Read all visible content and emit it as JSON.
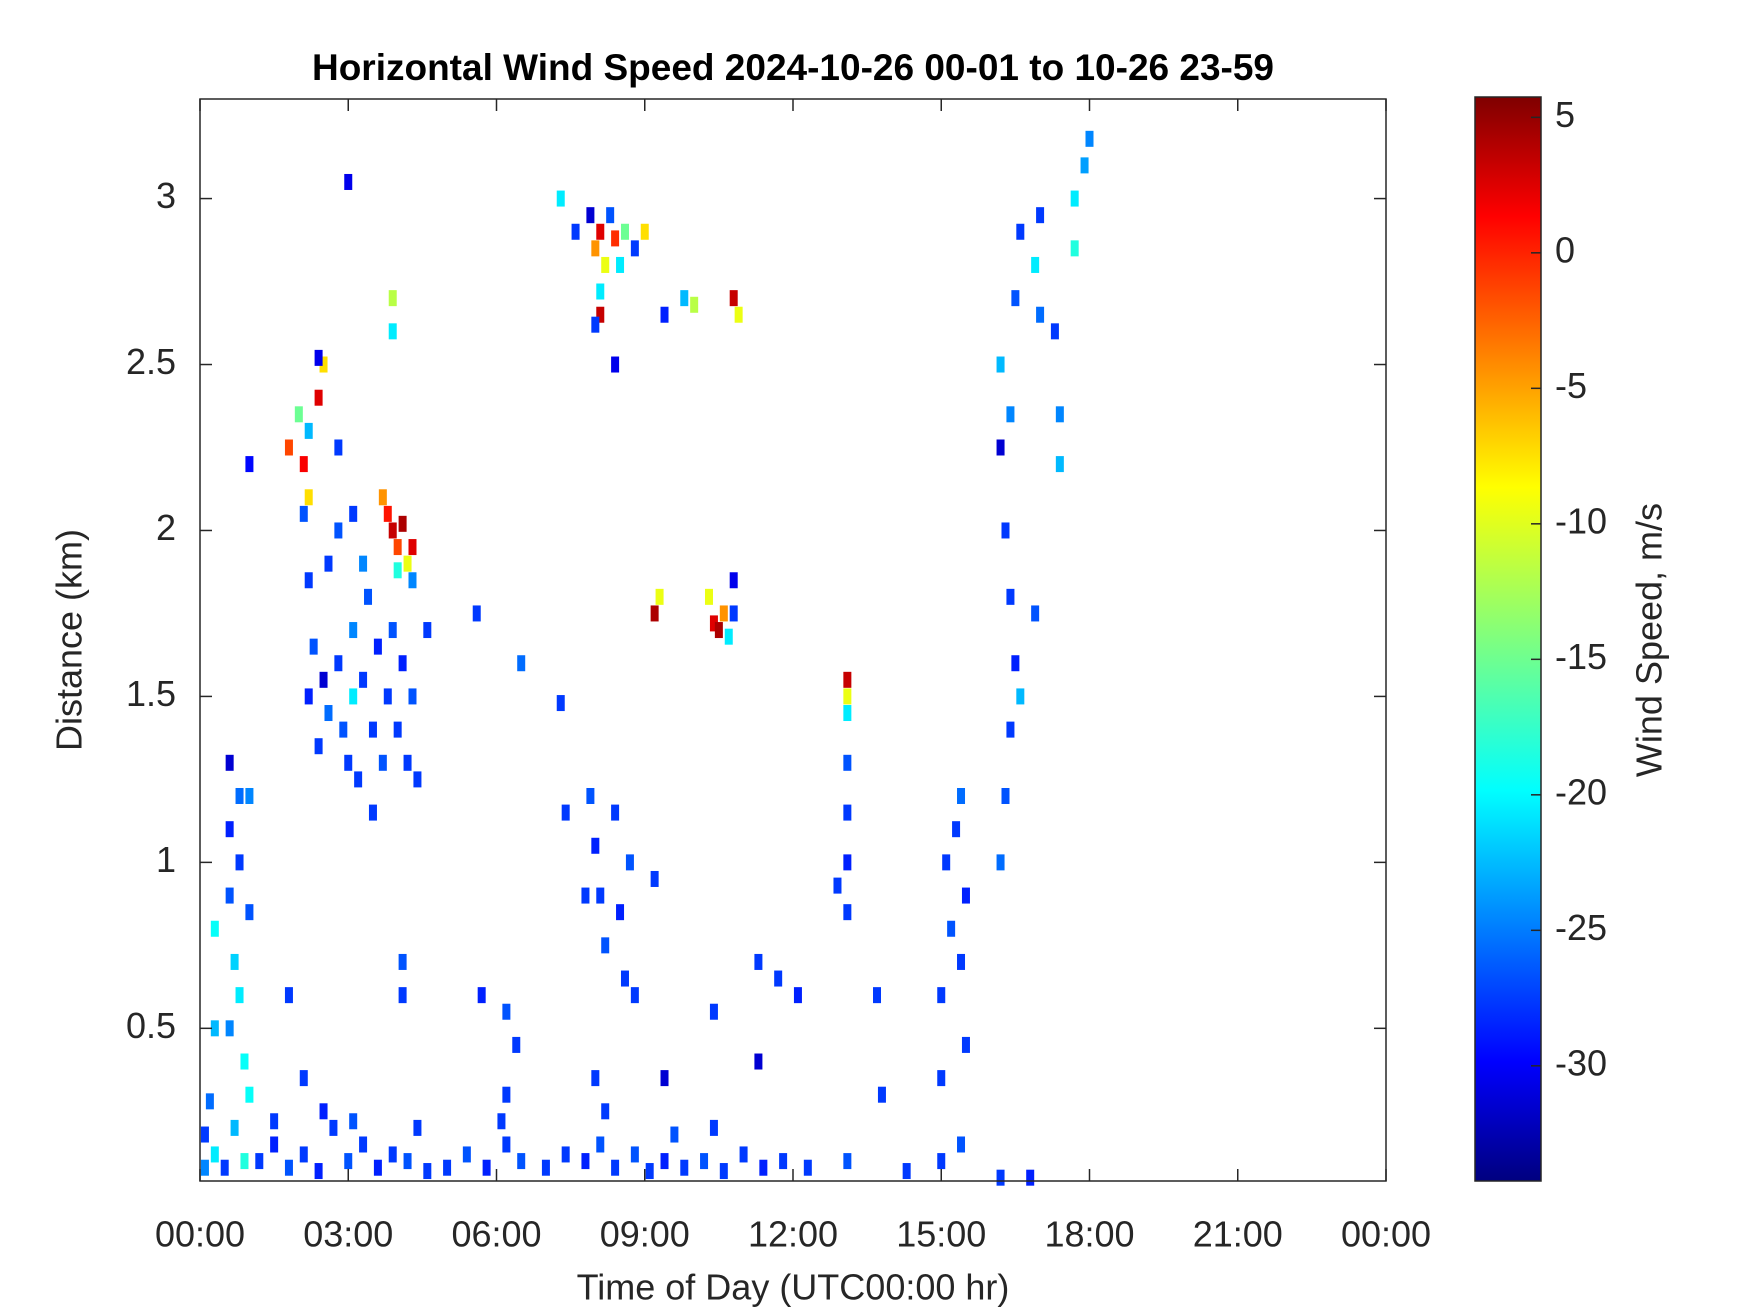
{
  "chart_data": {
    "type": "heatmap",
    "title": "Horizontal Wind Speed 2024-10-26 00-01 to 10-26 23-59",
    "x_label": "Time of Day (UTC00:00 hr)",
    "y_label": "Distance (km)",
    "colorbar_label": "Wind Speed, m/s",
    "colormap": "jet",
    "xlim": [
      0,
      24
    ],
    "xticks": [
      {
        "value": 0,
        "label": "00:00"
      },
      {
        "value": 3,
        "label": "03:00"
      },
      {
        "value": 6,
        "label": "06:00"
      },
      {
        "value": 9,
        "label": "09:00"
      },
      {
        "value": 12,
        "label": "12:00"
      },
      {
        "value": 15,
        "label": "15:00"
      },
      {
        "value": 18,
        "label": "18:00"
      },
      {
        "value": 21,
        "label": "21:00"
      },
      {
        "value": 24,
        "label": "00:00"
      }
    ],
    "ylim": [
      0.04,
      3.3
    ],
    "yticks": [
      0.5,
      1,
      1.5,
      2,
      2.5,
      3
    ],
    "clim": [
      -34.25,
      5.75
    ],
    "cticks": [
      5,
      0,
      -5,
      -10,
      -15,
      -20,
      -25,
      -30
    ],
    "points": [
      {
        "x": 0.1,
        "y": 0.08,
        "value": -24
      },
      {
        "x": 0.1,
        "y": 0.18,
        "value": -27
      },
      {
        "x": 0.3,
        "y": 0.12,
        "value": -20
      },
      {
        "x": 0.5,
        "y": 0.08,
        "value": -27
      },
      {
        "x": 0.7,
        "y": 0.2,
        "value": -22
      },
      {
        "x": 0.9,
        "y": 0.1,
        "value": -18
      },
      {
        "x": 1.2,
        "y": 0.1,
        "value": -27
      },
      {
        "x": 1.5,
        "y": 0.15,
        "value": -28
      },
      {
        "x": 1.8,
        "y": 0.08,
        "value": -26
      },
      {
        "x": 2.1,
        "y": 0.12,
        "value": -27
      },
      {
        "x": 2.4,
        "y": 0.07,
        "value": -28
      },
      {
        "x": 2.7,
        "y": 0.2,
        "value": -27
      },
      {
        "x": 3.0,
        "y": 0.1,
        "value": -26
      },
      {
        "x": 3.3,
        "y": 0.15,
        "value": -27
      },
      {
        "x": 3.6,
        "y": 0.08,
        "value": -28
      },
      {
        "x": 3.9,
        "y": 0.12,
        "value": -27
      },
      {
        "x": 4.2,
        "y": 0.1,
        "value": -26
      },
      {
        "x": 4.6,
        "y": 0.07,
        "value": -27
      },
      {
        "x": 5.0,
        "y": 0.08,
        "value": -27
      },
      {
        "x": 5.4,
        "y": 0.12,
        "value": -26
      },
      {
        "x": 5.8,
        "y": 0.08,
        "value": -28
      },
      {
        "x": 6.2,
        "y": 0.15,
        "value": -27
      },
      {
        "x": 6.5,
        "y": 0.1,
        "value": -26
      },
      {
        "x": 7.0,
        "y": 0.08,
        "value": -27
      },
      {
        "x": 7.4,
        "y": 0.12,
        "value": -27
      },
      {
        "x": 7.8,
        "y": 0.1,
        "value": -28
      },
      {
        "x": 8.1,
        "y": 0.15,
        "value": -26
      },
      {
        "x": 8.4,
        "y": 0.08,
        "value": -27
      },
      {
        "x": 8.8,
        "y": 0.12,
        "value": -26
      },
      {
        "x": 9.1,
        "y": 0.07,
        "value": -27
      },
      {
        "x": 9.4,
        "y": 0.1,
        "value": -28
      },
      {
        "x": 9.8,
        "y": 0.08,
        "value": -27
      },
      {
        "x": 10.2,
        "y": 0.1,
        "value": -26
      },
      {
        "x": 10.6,
        "y": 0.07,
        "value": -27
      },
      {
        "x": 11.0,
        "y": 0.12,
        "value": -27
      },
      {
        "x": 11.4,
        "y": 0.08,
        "value": -28
      },
      {
        "x": 11.8,
        "y": 0.1,
        "value": -27
      },
      {
        "x": 12.3,
        "y": 0.08,
        "value": -27
      },
      {
        "x": 13.1,
        "y": 0.1,
        "value": -26
      },
      {
        "x": 14.3,
        "y": 0.07,
        "value": -27
      },
      {
        "x": 15.0,
        "y": 0.1,
        "value": -27
      },
      {
        "x": 15.4,
        "y": 0.15,
        "value": -26
      },
      {
        "x": 16.2,
        "y": 0.05,
        "value": -27
      },
      {
        "x": 16.8,
        "y": 0.05,
        "value": -28
      },
      {
        "x": 0.2,
        "y": 0.28,
        "value": -25
      },
      {
        "x": 1.5,
        "y": 0.22,
        "value": -27
      },
      {
        "x": 2.5,
        "y": 0.25,
        "value": -28
      },
      {
        "x": 3.1,
        "y": 0.22,
        "value": -26
      },
      {
        "x": 4.4,
        "y": 0.2,
        "value": -27
      },
      {
        "x": 6.1,
        "y": 0.22,
        "value": -27
      },
      {
        "x": 8.2,
        "y": 0.25,
        "value": -27
      },
      {
        "x": 9.6,
        "y": 0.18,
        "value": -26
      },
      {
        "x": 10.4,
        "y": 0.2,
        "value": -27
      },
      {
        "x": 0.3,
        "y": 0.5,
        "value": -22
      },
      {
        "x": 0.3,
        "y": 0.8,
        "value": -19
      },
      {
        "x": 0.6,
        "y": 1.3,
        "value": -31
      },
      {
        "x": 0.6,
        "y": 1.1,
        "value": -28
      },
      {
        "x": 0.6,
        "y": 0.9,
        "value": -26
      },
      {
        "x": 0.7,
        "y": 0.7,
        "value": -21
      },
      {
        "x": 0.6,
        "y": 0.5,
        "value": -24
      },
      {
        "x": 0.8,
        "y": 1.2,
        "value": -25
      },
      {
        "x": 0.8,
        "y": 1.0,
        "value": -27
      },
      {
        "x": 0.8,
        "y": 0.6,
        "value": -20
      },
      {
        "x": 0.9,
        "y": 0.4,
        "value": -19
      },
      {
        "x": 1.0,
        "y": 1.2,
        "value": -24
      },
      {
        "x": 1.0,
        "y": 0.85,
        "value": -26
      },
      {
        "x": 1.0,
        "y": 0.3,
        "value": -19
      },
      {
        "x": 1.8,
        "y": 0.6,
        "value": -27
      },
      {
        "x": 4.1,
        "y": 0.6,
        "value": -27
      },
      {
        "x": 4.1,
        "y": 0.7,
        "value": -26
      },
      {
        "x": 5.7,
        "y": 0.6,
        "value": -28
      },
      {
        "x": 6.2,
        "y": 0.55,
        "value": -26
      },
      {
        "x": 6.4,
        "y": 0.45,
        "value": -27
      },
      {
        "x": 2.1,
        "y": 0.35,
        "value": -27
      },
      {
        "x": 6.2,
        "y": 0.3,
        "value": -27
      },
      {
        "x": 8.0,
        "y": 0.35,
        "value": -27
      },
      {
        "x": 9.4,
        "y": 0.35,
        "value": -31
      },
      {
        "x": 10.4,
        "y": 0.55,
        "value": -27
      },
      {
        "x": 11.3,
        "y": 0.7,
        "value": -27
      },
      {
        "x": 11.7,
        "y": 0.65,
        "value": -27
      },
      {
        "x": 12.1,
        "y": 0.6,
        "value": -28
      },
      {
        "x": 11.3,
        "y": 0.4,
        "value": -31
      },
      {
        "x": 13.7,
        "y": 0.6,
        "value": -27
      },
      {
        "x": 13.8,
        "y": 0.3,
        "value": -27
      },
      {
        "x": 7.4,
        "y": 1.15,
        "value": -27
      },
      {
        "x": 7.9,
        "y": 1.2,
        "value": -26
      },
      {
        "x": 8.0,
        "y": 1.05,
        "value": -28
      },
      {
        "x": 8.1,
        "y": 0.9,
        "value": -27
      },
      {
        "x": 8.2,
        "y": 0.75,
        "value": -26
      },
      {
        "x": 8.4,
        "y": 1.15,
        "value": -27
      },
      {
        "x": 8.5,
        "y": 0.85,
        "value": -28
      },
      {
        "x": 8.6,
        "y": 0.65,
        "value": -27
      },
      {
        "x": 8.7,
        "y": 1.0,
        "value": -26
      },
      {
        "x": 8.8,
        "y": 0.6,
        "value": -27
      },
      {
        "x": 9.2,
        "y": 0.95,
        "value": -27
      },
      {
        "x": 7.8,
        "y": 0.9,
        "value": -27
      },
      {
        "x": 15.0,
        "y": 0.35,
        "value": -27
      },
      {
        "x": 15.0,
        "y": 0.6,
        "value": -27
      },
      {
        "x": 15.1,
        "y": 1.0,
        "value": -27
      },
      {
        "x": 15.2,
        "y": 0.8,
        "value": -26
      },
      {
        "x": 15.3,
        "y": 1.1,
        "value": -27
      },
      {
        "x": 15.4,
        "y": 0.7,
        "value": -27
      },
      {
        "x": 15.5,
        "y": 0.9,
        "value": -28
      },
      {
        "x": 15.4,
        "y": 1.2,
        "value": -25
      },
      {
        "x": 15.5,
        "y": 0.45,
        "value": -27
      },
      {
        "x": 13.1,
        "y": 1.55,
        "value": 3
      },
      {
        "x": 13.1,
        "y": 1.5,
        "value": -10
      },
      {
        "x": 13.1,
        "y": 1.45,
        "value": -20
      },
      {
        "x": 13.1,
        "y": 1.3,
        "value": -26
      },
      {
        "x": 13.1,
        "y": 1.15,
        "value": -27
      },
      {
        "x": 13.1,
        "y": 1.0,
        "value": -28
      },
      {
        "x": 12.9,
        "y": 0.93,
        "value": -27
      },
      {
        "x": 13.1,
        "y": 0.85,
        "value": -27
      },
      {
        "x": 2.2,
        "y": 1.5,
        "value": -28
      },
      {
        "x": 2.3,
        "y": 1.65,
        "value": -26
      },
      {
        "x": 2.4,
        "y": 1.35,
        "value": -27
      },
      {
        "x": 2.5,
        "y": 1.55,
        "value": -31
      },
      {
        "x": 2.6,
        "y": 1.45,
        "value": -25
      },
      {
        "x": 2.8,
        "y": 1.6,
        "value": -27
      },
      {
        "x": 2.9,
        "y": 1.4,
        "value": -26
      },
      {
        "x": 3.0,
        "y": 1.3,
        "value": -27
      },
      {
        "x": 3.1,
        "y": 1.7,
        "value": -24
      },
      {
        "x": 3.1,
        "y": 1.5,
        "value": -20
      },
      {
        "x": 3.2,
        "y": 1.25,
        "value": -27
      },
      {
        "x": 3.3,
        "y": 1.55,
        "value": -27
      },
      {
        "x": 3.4,
        "y": 1.8,
        "value": -26
      },
      {
        "x": 3.5,
        "y": 1.4,
        "value": -27
      },
      {
        "x": 3.6,
        "y": 1.65,
        "value": -28
      },
      {
        "x": 3.7,
        "y": 1.3,
        "value": -26
      },
      {
        "x": 3.8,
        "y": 1.5,
        "value": -27
      },
      {
        "x": 3.9,
        "y": 1.7,
        "value": -26
      },
      {
        "x": 4.0,
        "y": 1.4,
        "value": -27
      },
      {
        "x": 4.1,
        "y": 1.6,
        "value": -28
      },
      {
        "x": 4.2,
        "y": 1.3,
        "value": -27
      },
      {
        "x": 4.3,
        "y": 1.5,
        "value": -26
      },
      {
        "x": 2.6,
        "y": 1.9,
        "value": -27
      },
      {
        "x": 2.8,
        "y": 2.0,
        "value": -26
      },
      {
        "x": 2.2,
        "y": 1.85,
        "value": -27
      },
      {
        "x": 2.1,
        "y": 2.05,
        "value": -26
      },
      {
        "x": 3.1,
        "y": 2.05,
        "value": -27
      },
      {
        "x": 3.3,
        "y": 1.9,
        "value": -24
      },
      {
        "x": 4.6,
        "y": 1.7,
        "value": -27
      },
      {
        "x": 5.6,
        "y": 1.75,
        "value": -27
      },
      {
        "x": 6.5,
        "y": 1.6,
        "value": -25
      },
      {
        "x": 7.3,
        "y": 1.48,
        "value": -27
      },
      {
        "x": 3.5,
        "y": 1.15,
        "value": -27
      },
      {
        "x": 4.4,
        "y": 1.25,
        "value": -27
      },
      {
        "x": 3.7,
        "y": 2.1,
        "value": -5
      },
      {
        "x": 3.8,
        "y": 2.05,
        "value": 0
      },
      {
        "x": 3.9,
        "y": 2.0,
        "value": 3
      },
      {
        "x": 4.0,
        "y": 1.95,
        "value": -2
      },
      {
        "x": 4.1,
        "y": 2.02,
        "value": 4
      },
      {
        "x": 4.2,
        "y": 1.9,
        "value": -10
      },
      {
        "x": 4.3,
        "y": 1.95,
        "value": 2
      },
      {
        "x": 4.3,
        "y": 1.85,
        "value": -24
      },
      {
        "x": 4.0,
        "y": 1.88,
        "value": -18
      },
      {
        "x": 1.8,
        "y": 2.25,
        "value": -2
      },
      {
        "x": 2.0,
        "y": 2.35,
        "value": -15
      },
      {
        "x": 2.1,
        "y": 2.2,
        "value": 1
      },
      {
        "x": 2.2,
        "y": 2.1,
        "value": -8
      },
      {
        "x": 2.2,
        "y": 2.3,
        "value": -22
      },
      {
        "x": 2.4,
        "y": 2.4,
        "value": 2
      },
      {
        "x": 2.5,
        "y": 2.5,
        "value": -8
      },
      {
        "x": 2.4,
        "y": 2.52,
        "value": -30
      },
      {
        "x": 2.8,
        "y": 2.25,
        "value": -27
      },
      {
        "x": 1.0,
        "y": 2.2,
        "value": -29
      },
      {
        "x": 3.0,
        "y": 3.05,
        "value": -30
      },
      {
        "x": 3.9,
        "y": 2.7,
        "value": -12
      },
      {
        "x": 3.9,
        "y": 2.6,
        "value": -20
      },
      {
        "x": 7.3,
        "y": 3.0,
        "value": -20
      },
      {
        "x": 7.6,
        "y": 2.9,
        "value": -27
      },
      {
        "x": 7.9,
        "y": 2.95,
        "value": -31
      },
      {
        "x": 8.0,
        "y": 2.85,
        "value": -5
      },
      {
        "x": 8.1,
        "y": 2.9,
        "value": 2
      },
      {
        "x": 8.2,
        "y": 2.8,
        "value": -10
      },
      {
        "x": 8.3,
        "y": 2.95,
        "value": -26
      },
      {
        "x": 8.4,
        "y": 2.88,
        "value": -1
      },
      {
        "x": 8.5,
        "y": 2.8,
        "value": -20
      },
      {
        "x": 8.6,
        "y": 2.9,
        "value": -15
      },
      {
        "x": 8.8,
        "y": 2.85,
        "value": -27
      },
      {
        "x": 9.0,
        "y": 2.9,
        "value": -8
      },
      {
        "x": 8.1,
        "y": 2.72,
        "value": -20
      },
      {
        "x": 8.1,
        "y": 2.65,
        "value": 3
      },
      {
        "x": 8.0,
        "y": 2.62,
        "value": -27
      },
      {
        "x": 8.4,
        "y": 2.5,
        "value": -30
      },
      {
        "x": 9.4,
        "y": 2.65,
        "value": -28
      },
      {
        "x": 9.8,
        "y": 2.7,
        "value": -22
      },
      {
        "x": 10.0,
        "y": 2.68,
        "value": -12
      },
      {
        "x": 10.8,
        "y": 2.7,
        "value": 3
      },
      {
        "x": 10.9,
        "y": 2.65,
        "value": -10
      },
      {
        "x": 9.2,
        "y": 1.75,
        "value": 4
      },
      {
        "x": 9.3,
        "y": 1.8,
        "value": -10
      },
      {
        "x": 10.3,
        "y": 1.8,
        "value": -10
      },
      {
        "x": 10.4,
        "y": 1.72,
        "value": 2
      },
      {
        "x": 10.5,
        "y": 1.7,
        "value": 4
      },
      {
        "x": 10.6,
        "y": 1.75,
        "value": -5
      },
      {
        "x": 10.7,
        "y": 1.68,
        "value": -20
      },
      {
        "x": 10.8,
        "y": 1.75,
        "value": -27
      },
      {
        "x": 10.8,
        "y": 1.85,
        "value": -30
      },
      {
        "x": 16.2,
        "y": 1.0,
        "value": -25
      },
      {
        "x": 16.3,
        "y": 1.2,
        "value": -26
      },
      {
        "x": 16.4,
        "y": 1.4,
        "value": -27
      },
      {
        "x": 16.5,
        "y": 1.6,
        "value": -28
      },
      {
        "x": 16.6,
        "y": 1.5,
        "value": -22
      },
      {
        "x": 16.4,
        "y": 1.8,
        "value": -27
      },
      {
        "x": 16.3,
        "y": 2.0,
        "value": -27
      },
      {
        "x": 16.2,
        "y": 2.25,
        "value": -31
      },
      {
        "x": 16.4,
        "y": 2.35,
        "value": -24
      },
      {
        "x": 16.2,
        "y": 2.5,
        "value": -22
      },
      {
        "x": 16.5,
        "y": 2.7,
        "value": -26
      },
      {
        "x": 16.6,
        "y": 2.9,
        "value": -27
      },
      {
        "x": 16.9,
        "y": 2.8,
        "value": -20
      },
      {
        "x": 17.0,
        "y": 2.65,
        "value": -25
      },
      {
        "x": 17.3,
        "y": 2.6,
        "value": -27
      },
      {
        "x": 17.4,
        "y": 2.35,
        "value": -24
      },
      {
        "x": 17.4,
        "y": 2.2,
        "value": -22
      },
      {
        "x": 16.9,
        "y": 1.75,
        "value": -26
      },
      {
        "x": 17.7,
        "y": 2.85,
        "value": -18
      },
      {
        "x": 17.7,
        "y": 3.0,
        "value": -20
      },
      {
        "x": 17.9,
        "y": 3.1,
        "value": -23
      },
      {
        "x": 18.0,
        "y": 3.18,
        "value": -24
      },
      {
        "x": 17.0,
        "y": 2.95,
        "value": -27
      }
    ]
  }
}
